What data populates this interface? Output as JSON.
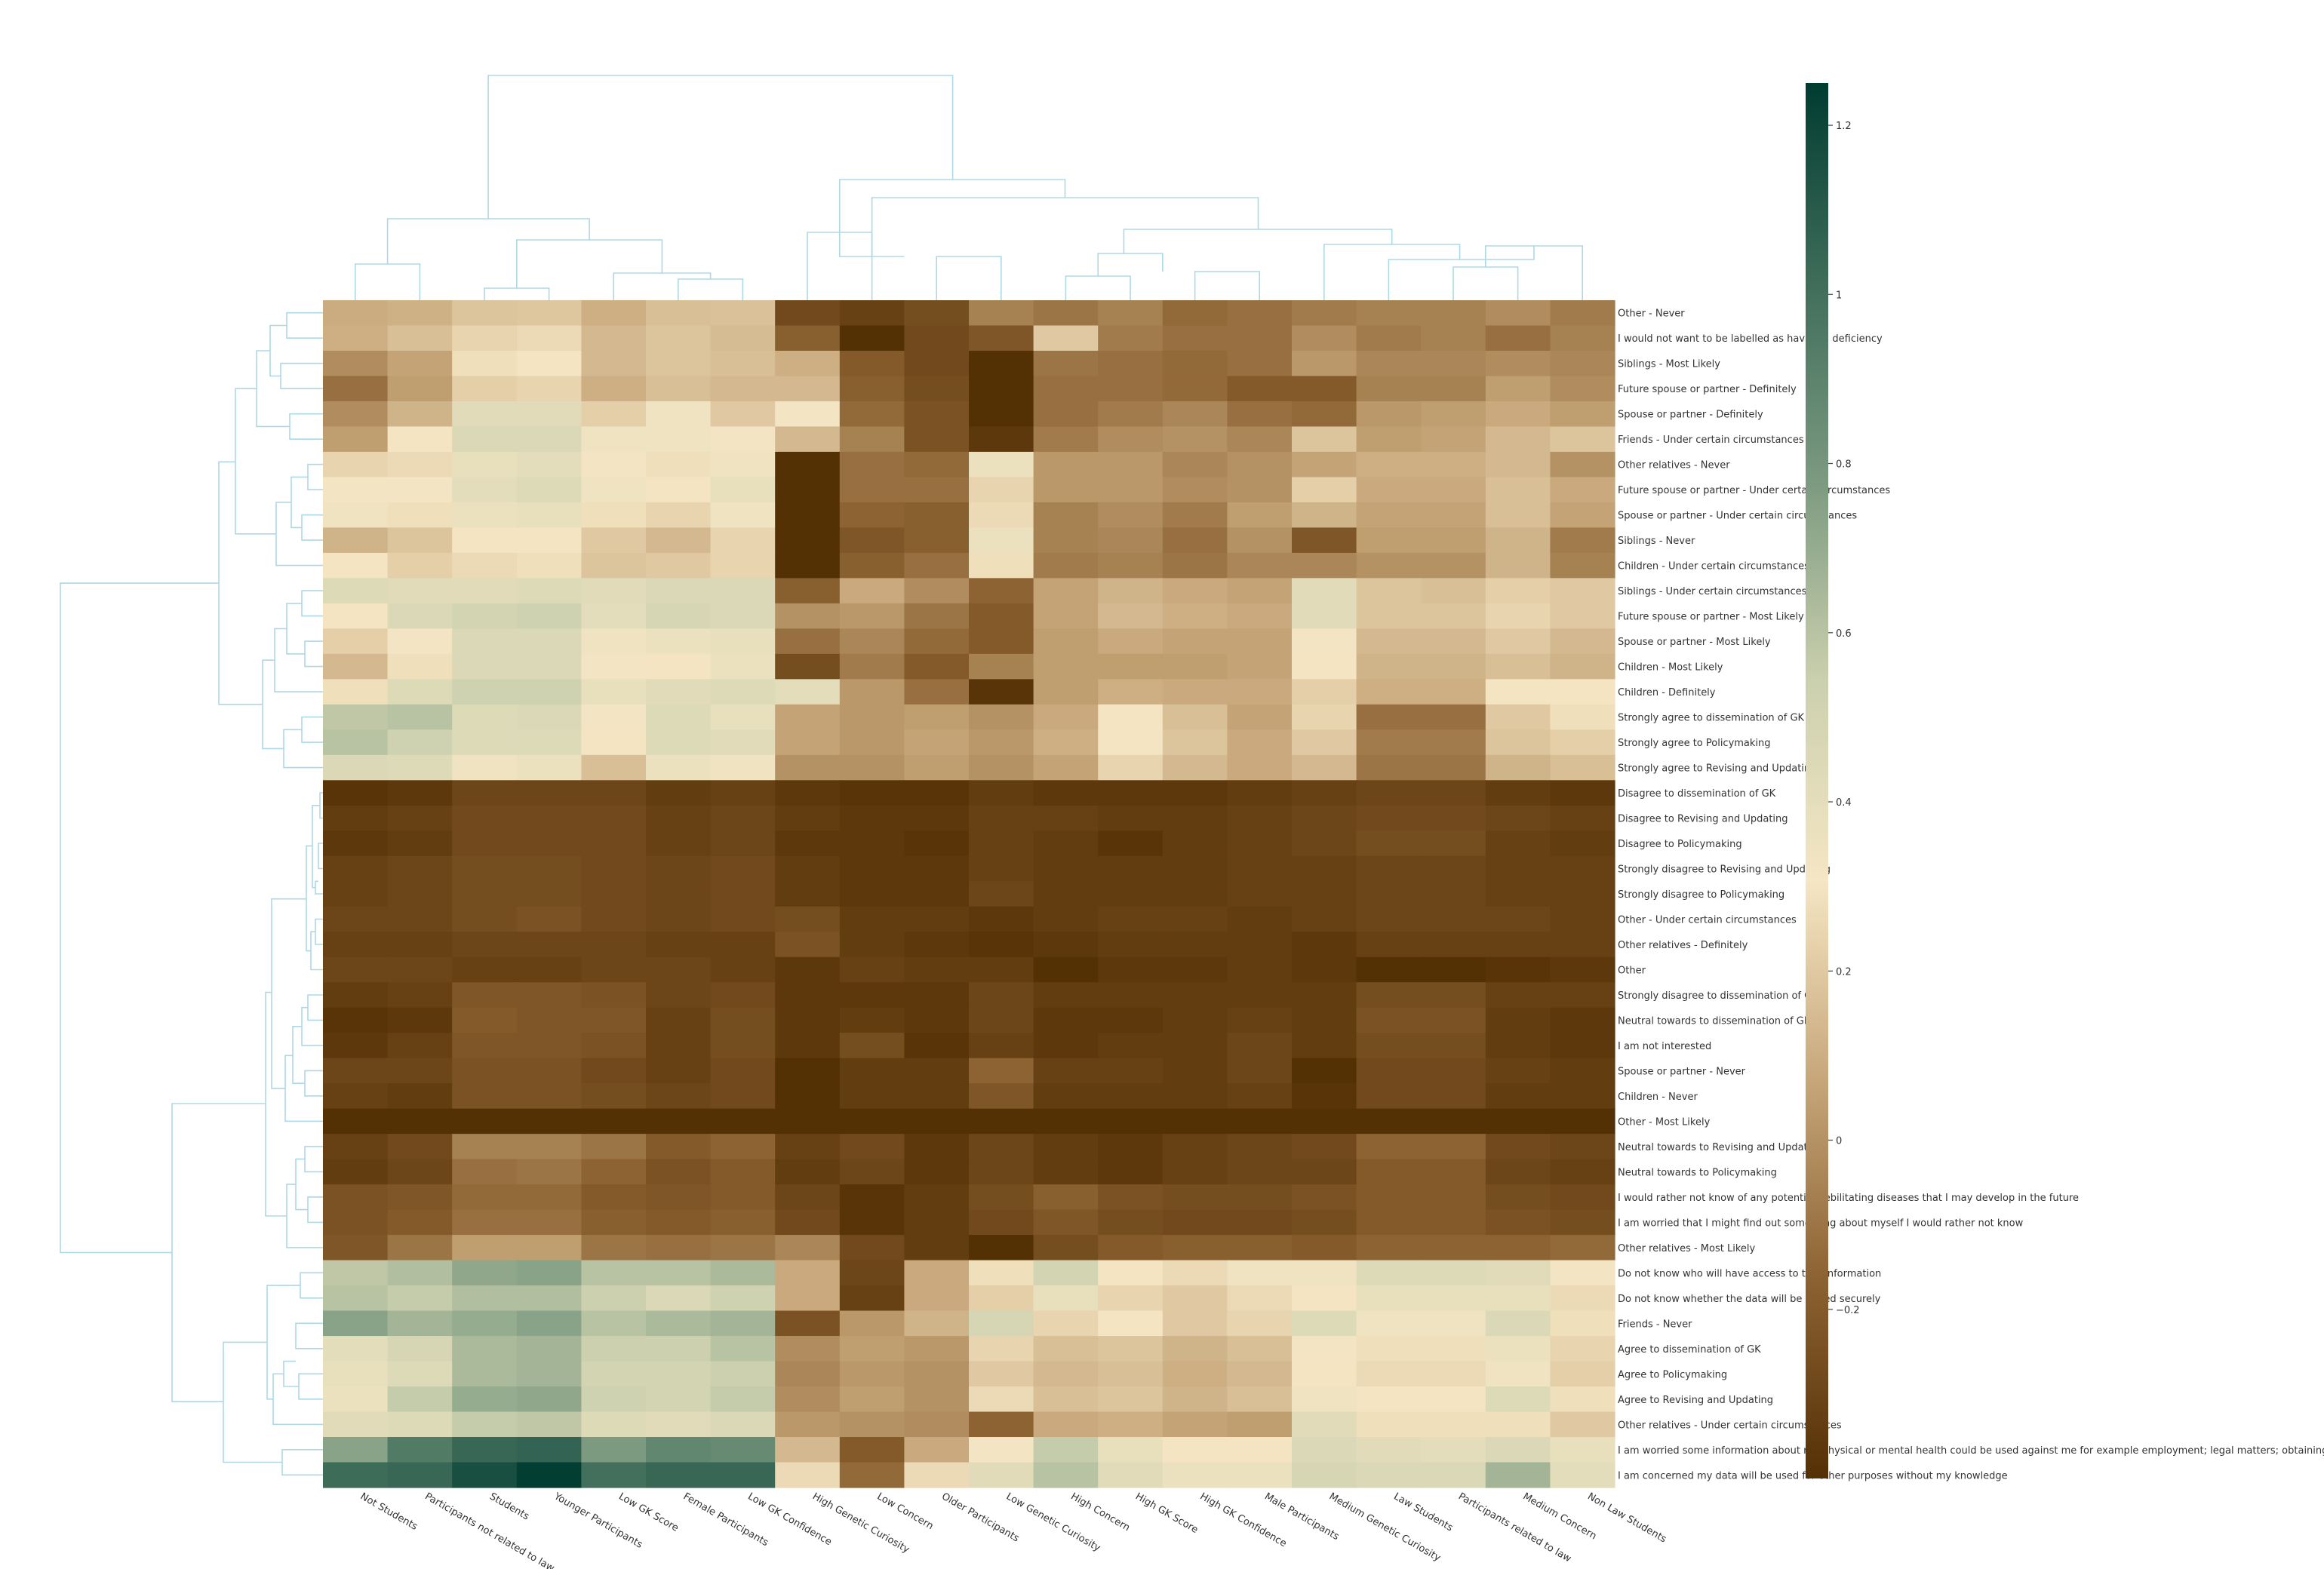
{
  "chart_data": {
    "type": "heatmap",
    "title": "",
    "xlabel": "",
    "ylabel": "",
    "columns": [
      "Not Students",
      "Participants not related to law",
      "Students",
      "Younger Participants",
      "Low GK Score",
      "Female Participants",
      "Low GK Confidence",
      "High Genetic Curiosity",
      "Low Concern",
      "Older Participants",
      "Low Genetic Curiosity",
      "High Concern",
      "High GK Score",
      "High GK Confidence",
      "Male Participants",
      "Medium Genetic Curiosity",
      "Law Students",
      "Participants related to law",
      "Medium Concern",
      "Non Law Students"
    ],
    "rows": [
      "Other - Never",
      "I would not want to be labelled as having a deficiency",
      "Siblings - Most Likely",
      "Future spouse or partner - Definitely",
      "Spouse or partner - Definitely",
      "Friends - Under certain circumstances",
      "Other relatives - Never",
      "Future spouse or partner - Under certain circumstances",
      "Spouse or partner - Under certain circumstances",
      "Siblings - Never",
      "Children - Under certain circumstances",
      "Siblings - Under certain circumstances",
      "Future spouse or partner - Most Likely",
      "Spouse or partner - Most Likely",
      "Children - Most Likely",
      "Children - Definitely",
      "Strongly agree to dissemination of GK",
      "Strongly agree to Policymaking",
      "Strongly agree to Revising and Updating",
      "Disagree to dissemination of GK",
      "Disagree to Revising and Updating",
      "Disagree to Policymaking",
      "Strongly disagree to Revising and Updating",
      "Strongly disagree to Policymaking",
      "Other - Under certain circumstances",
      "Other relatives - Definitely",
      "Other",
      "Strongly disagree to dissemination of GK",
      "Neutral towards to dissemination of GK",
      "I am not interested",
      "Spouse or partner - Never",
      "Children - Never",
      "Other - Most Likely",
      "Neutral towards to Revising and Updating",
      "Neutral towards to Policymaking",
      "I would rather not know of any potential debilitating diseases that I may develop in the future",
      "I am worried that I might find out something about myself I would rather not know",
      "Other relatives - Most Likely",
      "Do not know who will have access to that information",
      "Do not know whether the data will be stored securely",
      "Friends - Never",
      "Agree to dissemination of GK",
      "Agree to Policymaking",
      "Agree to Revising and Updating",
      "Other relatives - Under certain circumstances",
      "I am worried some information about my physical or mental health could be used against me for example employment; legal matters; obtaining insurance",
      "I am concerned my data will be used for other purposes without my knowledge"
    ],
    "values": [
      [
        0.09,
        0.11,
        0.18,
        0.19,
        0.1,
        0.16,
        0.17,
        -0.28,
        -0.32,
        -0.26,
        -0.06,
        -0.1,
        -0.06,
        -0.14,
        -0.12,
        -0.08,
        -0.06,
        -0.06,
        -0.02,
        -0.08
      ],
      [
        0.1,
        0.16,
        0.24,
        0.26,
        0.14,
        0.18,
        0.15,
        -0.18,
        -0.4,
        -0.28,
        -0.22,
        0.2,
        -0.08,
        -0.12,
        -0.12,
        -0.02,
        -0.08,
        -0.06,
        -0.12,
        -0.06
      ],
      [
        -0.02,
        0.06,
        0.28,
        0.3,
        0.14,
        0.18,
        0.16,
        0.1,
        -0.2,
        -0.28,
        -0.4,
        -0.1,
        -0.12,
        -0.14,
        -0.12,
        0.02,
        -0.04,
        -0.04,
        -0.02,
        -0.04
      ],
      [
        -0.12,
        0.04,
        0.22,
        0.24,
        0.1,
        0.16,
        0.14,
        0.14,
        -0.18,
        -0.26,
        -0.4,
        -0.12,
        -0.12,
        -0.14,
        -0.2,
        -0.2,
        -0.06,
        -0.06,
        0.04,
        -0.02
      ],
      [
        -0.02,
        0.12,
        0.42,
        0.42,
        0.22,
        0.34,
        0.2,
        0.32,
        -0.14,
        -0.24,
        -0.4,
        -0.12,
        -0.08,
        -0.04,
        -0.12,
        -0.14,
        0.02,
        0.04,
        0.08,
        0.04
      ],
      [
        0.04,
        0.3,
        0.46,
        0.46,
        0.34,
        0.34,
        0.32,
        0.14,
        -0.06,
        -0.24,
        -0.36,
        -0.08,
        -0.02,
        0.0,
        -0.04,
        0.18,
        0.04,
        0.06,
        0.14,
        0.18
      ],
      [
        0.24,
        0.26,
        0.38,
        0.4,
        0.32,
        0.28,
        0.34,
        -0.42,
        -0.12,
        -0.14,
        0.36,
        0.02,
        0.02,
        -0.04,
        0.0,
        0.06,
        0.1,
        0.1,
        0.14,
        0.0
      ],
      [
        0.32,
        0.32,
        0.4,
        0.44,
        0.34,
        0.3,
        0.38,
        -0.42,
        -0.12,
        -0.12,
        0.24,
        0.02,
        0.02,
        -0.02,
        0.0,
        0.22,
        0.08,
        0.08,
        0.16,
        0.08
      ],
      [
        0.34,
        0.28,
        0.36,
        0.38,
        0.28,
        0.24,
        0.34,
        -0.44,
        -0.16,
        -0.18,
        0.26,
        -0.06,
        -0.02,
        -0.08,
        0.04,
        0.12,
        0.06,
        0.06,
        0.16,
        0.06
      ],
      [
        0.12,
        0.18,
        0.3,
        0.3,
        0.2,
        0.14,
        0.24,
        -0.44,
        -0.22,
        -0.18,
        0.36,
        -0.06,
        -0.04,
        -0.12,
        0.0,
        -0.22,
        0.04,
        0.04,
        0.12,
        -0.08
      ],
      [
        0.3,
        0.22,
        0.26,
        0.28,
        0.18,
        0.2,
        0.24,
        -0.44,
        -0.18,
        -0.12,
        0.28,
        -0.08,
        -0.06,
        -0.1,
        -0.04,
        -0.04,
        0.0,
        0.0,
        0.12,
        -0.06
      ],
      [
        0.44,
        0.42,
        0.42,
        0.44,
        0.42,
        0.46,
        0.46,
        -0.18,
        0.08,
        -0.02,
        -0.16,
        0.06,
        0.12,
        0.08,
        0.06,
        0.42,
        0.18,
        0.16,
        0.22,
        0.2
      ],
      [
        0.3,
        0.46,
        0.5,
        0.52,
        0.4,
        0.48,
        0.46,
        0.0,
        0.02,
        -0.1,
        -0.2,
        0.06,
        0.14,
        0.1,
        0.08,
        0.42,
        0.18,
        0.18,
        0.24,
        0.2
      ],
      [
        0.22,
        0.32,
        0.46,
        0.46,
        0.34,
        0.36,
        0.38,
        -0.12,
        -0.04,
        -0.14,
        -0.2,
        0.04,
        0.08,
        0.06,
        0.06,
        0.32,
        0.14,
        0.14,
        0.2,
        0.14
      ],
      [
        0.14,
        0.28,
        0.46,
        0.46,
        0.32,
        0.3,
        0.36,
        -0.26,
        -0.08,
        -0.2,
        -0.06,
        0.04,
        0.04,
        0.04,
        0.06,
        0.3,
        0.12,
        0.12,
        0.16,
        0.12
      ],
      [
        0.28,
        0.44,
        0.52,
        0.52,
        0.38,
        0.42,
        0.44,
        0.4,
        0.02,
        -0.12,
        -0.38,
        0.04,
        0.1,
        0.08,
        0.08,
        0.22,
        0.1,
        0.1,
        0.3,
        0.3
      ],
      [
        0.58,
        0.6,
        0.44,
        0.46,
        0.32,
        0.44,
        0.38,
        0.06,
        0.02,
        0.04,
        0.0,
        0.08,
        0.3,
        0.16,
        0.06,
        0.24,
        -0.12,
        -0.12,
        0.2,
        0.28
      ],
      [
        0.6,
        0.52,
        0.44,
        0.44,
        0.3,
        0.44,
        0.42,
        0.06,
        0.02,
        0.06,
        0.02,
        0.1,
        0.3,
        0.18,
        0.08,
        0.2,
        -0.08,
        -0.08,
        0.18,
        0.22
      ],
      [
        0.46,
        0.44,
        0.34,
        0.36,
        0.16,
        0.36,
        0.34,
        0.0,
        0.0,
        0.04,
        0.0,
        0.06,
        0.24,
        0.14,
        0.08,
        0.14,
        -0.1,
        -0.1,
        0.12,
        0.16
      ],
      [
        -0.38,
        -0.36,
        -0.3,
        -0.3,
        -0.3,
        -0.34,
        -0.32,
        -0.36,
        -0.38,
        -0.38,
        -0.34,
        -0.36,
        -0.36,
        -0.36,
        -0.34,
        -0.32,
        -0.3,
        -0.3,
        -0.34,
        -0.36
      ],
      [
        -0.34,
        -0.32,
        -0.28,
        -0.28,
        -0.28,
        -0.32,
        -0.3,
        -0.34,
        -0.36,
        -0.36,
        -0.32,
        -0.32,
        -0.34,
        -0.34,
        -0.32,
        -0.3,
        -0.28,
        -0.28,
        -0.3,
        -0.32
      ],
      [
        -0.36,
        -0.34,
        -0.28,
        -0.28,
        -0.28,
        -0.32,
        -0.3,
        -0.36,
        -0.36,
        -0.38,
        -0.32,
        -0.34,
        -0.38,
        -0.34,
        -0.32,
        -0.3,
        -0.26,
        -0.26,
        -0.32,
        -0.34
      ],
      [
        -0.32,
        -0.3,
        -0.26,
        -0.26,
        -0.28,
        -0.3,
        -0.28,
        -0.34,
        -0.36,
        -0.36,
        -0.32,
        -0.34,
        -0.34,
        -0.34,
        -0.32,
        -0.32,
        -0.3,
        -0.3,
        -0.32,
        -0.32
      ],
      [
        -0.32,
        -0.3,
        -0.26,
        -0.26,
        -0.28,
        -0.3,
        -0.28,
        -0.34,
        -0.36,
        -0.36,
        -0.3,
        -0.34,
        -0.34,
        -0.34,
        -0.32,
        -0.32,
        -0.3,
        -0.3,
        -0.32,
        -0.32
      ],
      [
        -0.3,
        -0.3,
        -0.26,
        -0.24,
        -0.28,
        -0.3,
        -0.28,
        -0.26,
        -0.34,
        -0.34,
        -0.36,
        -0.34,
        -0.32,
        -0.32,
        -0.34,
        -0.32,
        -0.3,
        -0.3,
        -0.3,
        -0.32
      ],
      [
        -0.32,
        -0.32,
        -0.3,
        -0.3,
        -0.3,
        -0.32,
        -0.32,
        -0.24,
        -0.34,
        -0.36,
        -0.38,
        -0.36,
        -0.34,
        -0.34,
        -0.34,
        -0.36,
        -0.32,
        -0.32,
        -0.32,
        -0.32
      ],
      [
        -0.3,
        -0.3,
        -0.32,
        -0.32,
        -0.3,
        -0.3,
        -0.32,
        -0.36,
        -0.32,
        -0.34,
        -0.34,
        -0.4,
        -0.36,
        -0.36,
        -0.34,
        -0.36,
        -0.4,
        -0.4,
        -0.38,
        -0.36
      ],
      [
        -0.34,
        -0.32,
        -0.22,
        -0.22,
        -0.24,
        -0.3,
        -0.28,
        -0.36,
        -0.36,
        -0.36,
        -0.3,
        -0.34,
        -0.34,
        -0.34,
        -0.34,
        -0.34,
        -0.26,
        -0.26,
        -0.32,
        -0.32
      ],
      [
        -0.38,
        -0.36,
        -0.2,
        -0.22,
        -0.22,
        -0.32,
        -0.26,
        -0.36,
        -0.34,
        -0.36,
        -0.3,
        -0.36,
        -0.36,
        -0.34,
        -0.32,
        -0.34,
        -0.24,
        -0.24,
        -0.34,
        -0.36
      ],
      [
        -0.36,
        -0.32,
        -0.22,
        -0.22,
        -0.24,
        -0.32,
        -0.26,
        -0.36,
        -0.26,
        -0.38,
        -0.32,
        -0.36,
        -0.34,
        -0.34,
        -0.3,
        -0.34,
        -0.26,
        -0.26,
        -0.34,
        -0.36
      ],
      [
        -0.3,
        -0.3,
        -0.24,
        -0.24,
        -0.28,
        -0.32,
        -0.28,
        -0.42,
        -0.34,
        -0.34,
        -0.16,
        -0.32,
        -0.32,
        -0.34,
        -0.3,
        -0.4,
        -0.28,
        -0.28,
        -0.32,
        -0.34
      ],
      [
        -0.32,
        -0.34,
        -0.24,
        -0.24,
        -0.26,
        -0.3,
        -0.28,
        -0.4,
        -0.34,
        -0.34,
        -0.22,
        -0.34,
        -0.34,
        -0.34,
        -0.32,
        -0.38,
        -0.28,
        -0.28,
        -0.34,
        -0.34
      ],
      [
        -0.42,
        -0.42,
        -0.4,
        -0.4,
        -0.4,
        -0.4,
        -0.4,
        -0.4,
        -0.4,
        -0.42,
        -0.42,
        -0.42,
        -0.42,
        -0.42,
        -0.42,
        -0.42,
        -0.42,
        -0.42,
        -0.42,
        -0.42
      ],
      [
        -0.32,
        -0.28,
        -0.06,
        -0.06,
        -0.1,
        -0.2,
        -0.16,
        -0.32,
        -0.28,
        -0.36,
        -0.3,
        -0.34,
        -0.36,
        -0.32,
        -0.3,
        -0.28,
        -0.16,
        -0.16,
        -0.28,
        -0.3
      ],
      [
        -0.34,
        -0.3,
        -0.12,
        -0.1,
        -0.16,
        -0.24,
        -0.2,
        -0.34,
        -0.3,
        -0.36,
        -0.3,
        -0.34,
        -0.36,
        -0.32,
        -0.3,
        -0.3,
        -0.2,
        -0.2,
        -0.3,
        -0.32
      ],
      [
        -0.24,
        -0.22,
        -0.14,
        -0.14,
        -0.2,
        -0.22,
        -0.2,
        -0.3,
        -0.38,
        -0.34,
        -0.26,
        -0.18,
        -0.24,
        -0.26,
        -0.26,
        -0.24,
        -0.2,
        -0.2,
        -0.26,
        -0.28
      ],
      [
        -0.24,
        -0.2,
        -0.12,
        -0.12,
        -0.18,
        -0.2,
        -0.18,
        -0.28,
        -0.38,
        -0.34,
        -0.28,
        -0.22,
        -0.26,
        -0.28,
        -0.28,
        -0.26,
        -0.2,
        -0.2,
        -0.24,
        -0.26
      ],
      [
        -0.22,
        -0.1,
        0.04,
        0.04,
        -0.1,
        -0.12,
        -0.1,
        -0.04,
        -0.28,
        -0.34,
        -0.42,
        -0.26,
        -0.2,
        -0.18,
        -0.18,
        -0.2,
        -0.16,
        -0.16,
        -0.16,
        -0.14
      ],
      [
        0.58,
        0.62,
        0.72,
        0.74,
        0.6,
        0.6,
        0.64,
        0.08,
        -0.3,
        0.08,
        0.28,
        0.5,
        0.3,
        0.26,
        0.34,
        0.34,
        0.44,
        0.44,
        0.42,
        0.32
      ],
      [
        0.6,
        0.56,
        0.62,
        0.62,
        0.54,
        0.46,
        0.52,
        0.08,
        -0.32,
        0.08,
        0.22,
        0.38,
        0.24,
        0.2,
        0.26,
        0.3,
        0.38,
        0.38,
        0.38,
        0.26
      ],
      [
        0.74,
        0.66,
        0.7,
        0.74,
        0.6,
        0.64,
        0.66,
        -0.24,
        0.02,
        0.12,
        0.48,
        0.24,
        0.3,
        0.2,
        0.24,
        0.44,
        0.34,
        0.34,
        0.46,
        0.28
      ],
      [
        0.4,
        0.48,
        0.64,
        0.66,
        0.54,
        0.54,
        0.6,
        -0.02,
        0.04,
        0.02,
        0.24,
        0.16,
        0.18,
        0.12,
        0.16,
        0.32,
        0.28,
        0.28,
        0.36,
        0.24
      ],
      [
        0.38,
        0.44,
        0.64,
        0.66,
        0.5,
        0.5,
        0.54,
        -0.04,
        0.02,
        0.0,
        0.2,
        0.14,
        0.16,
        0.1,
        0.14,
        0.3,
        0.26,
        0.26,
        0.34,
        0.22
      ],
      [
        0.36,
        0.56,
        0.7,
        0.72,
        0.52,
        0.5,
        0.56,
        -0.02,
        0.04,
        0.0,
        0.26,
        0.16,
        0.18,
        0.12,
        0.16,
        0.34,
        0.3,
        0.3,
        0.44,
        0.28
      ],
      [
        0.42,
        0.44,
        0.56,
        0.58,
        0.44,
        0.42,
        0.46,
        0.02,
        0.0,
        -0.02,
        -0.16,
        0.08,
        0.1,
        0.06,
        0.04,
        0.42,
        0.28,
        0.28,
        0.28,
        0.2
      ],
      [
        0.74,
        0.94,
        1.04,
        1.06,
        0.78,
        0.88,
        0.86,
        0.14,
        -0.2,
        0.08,
        0.32,
        0.56,
        0.38,
        0.3,
        0.3,
        0.46,
        0.42,
        0.4,
        0.46,
        0.38
      ],
      [
        1.02,
        1.04,
        1.16,
        1.24,
        1.0,
        1.04,
        1.04,
        0.26,
        -0.14,
        0.26,
        0.42,
        0.6,
        0.42,
        0.36,
        0.36,
        0.48,
        0.46,
        0.46,
        0.66,
        0.4
      ]
    ],
    "colorbar": {
      "vmin": -0.4,
      "vmax": 1.25,
      "ticks": [
        -0.2,
        0,
        0.2,
        0.4,
        0.6,
        0.8,
        1,
        1.2
      ]
    },
    "colorscale": [
      "#543005",
      "#8c6232",
      "#c7a77a",
      "#f5e6c4",
      "#cbd0ae",
      "#7c9a80",
      "#3f6d5a",
      "#003c30"
    ],
    "dendrogram_color": "#add8e6",
    "grid": false,
    "legend": "none"
  }
}
